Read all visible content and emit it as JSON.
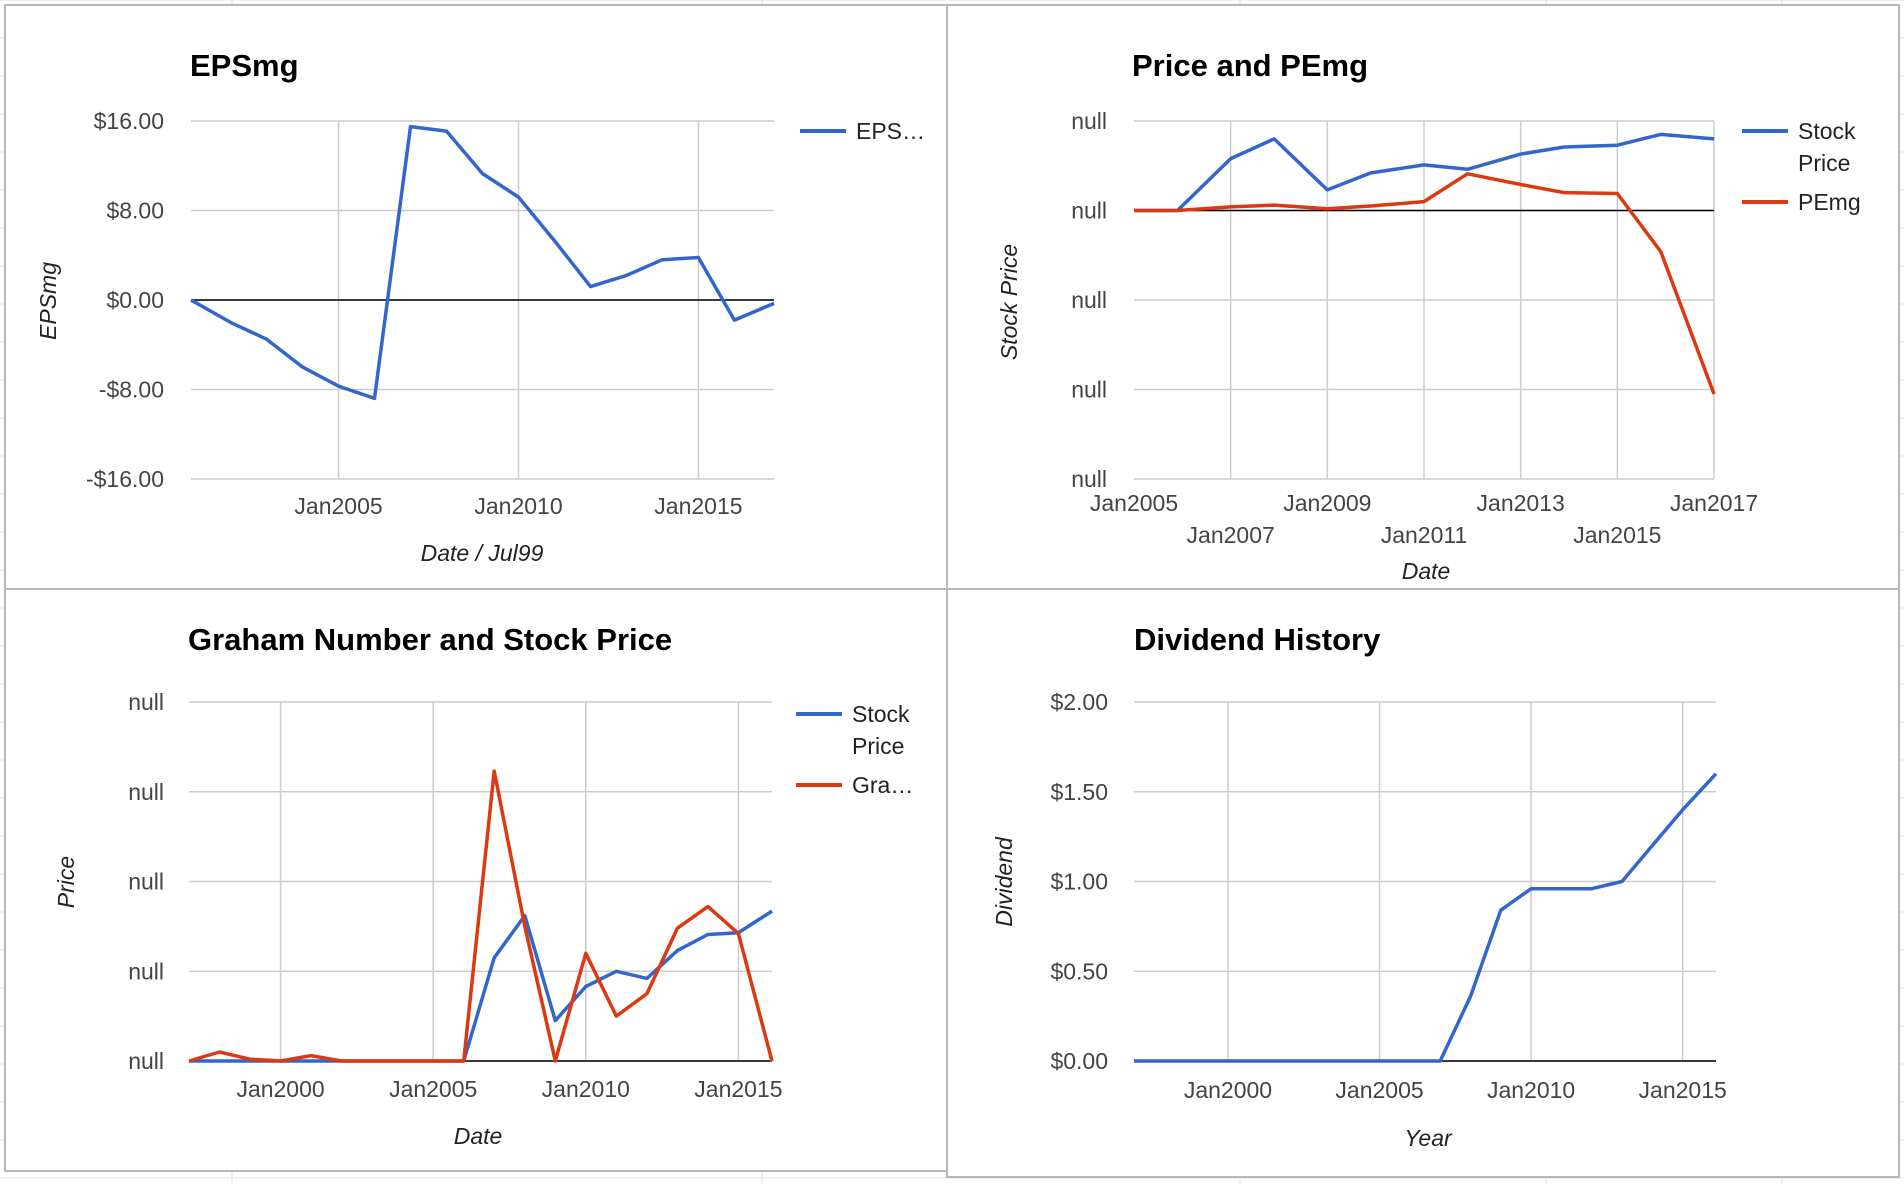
{
  "colors": {
    "blue": "#3366cc",
    "red": "#dc3912"
  },
  "chart_data": [
    {
      "type": "line",
      "title": "EPSmg",
      "xlabel": "Date / Jul99",
      "ylabel": "EPSmg",
      "x_ticks": [
        "Jan2005",
        "Jan2010",
        "Jan2015"
      ],
      "y_ticks": [
        "$16.00",
        "$8.00",
        "$0.00",
        "-$8.00",
        "-$16.00"
      ],
      "ylim": [
        -16,
        16
      ],
      "xlim": [
        2000.9,
        2017.1
      ],
      "grid": true,
      "legend_position": "right",
      "series": [
        {
          "name": "EPS…",
          "color": "#3366cc",
          "x": [
            2000.9,
            2002,
            2003,
            2004,
            2005,
            2006,
            2007,
            2008,
            2009,
            2010,
            2011,
            2012,
            2013,
            2014,
            2015,
            2016,
            2017.1
          ],
          "y": [
            0,
            -2,
            -3.5,
            -6,
            -7.7,
            -8.8,
            15.5,
            15.1,
            11.3,
            9.2,
            5.3,
            1.2,
            2.2,
            3.6,
            3.8,
            -1.8,
            -0.3
          ]
        }
      ]
    },
    {
      "type": "line",
      "title": "Price and PEmg",
      "xlabel": "Date",
      "ylabel": "Stock Price",
      "x_ticks_row1": [
        "Jan2005",
        "Jan2009",
        "Jan2013",
        "Jan2017"
      ],
      "x_ticks_row2": [
        "Jan2007",
        "Jan2011",
        "Jan2015"
      ],
      "y_ticks": [
        "null",
        "null",
        "null",
        "null",
        "null"
      ],
      "xlim": [
        2005,
        2017
      ],
      "ylim": [
        -3,
        1
      ],
      "grid": true,
      "legend_position": "right",
      "series": [
        {
          "name": "Stock Price",
          "color": "#3366cc",
          "x": [
            2005,
            2005.9,
            2007,
            2007.9,
            2009,
            2009.9,
            2011,
            2011.9,
            2013,
            2013.9,
            2015,
            2015.9,
            2017
          ],
          "y": [
            0,
            0,
            0.58,
            0.8,
            0.23,
            0.42,
            0.51,
            0.46,
            0.63,
            0.71,
            0.73,
            0.85,
            0.8
          ]
        },
        {
          "name": "PEmg",
          "color": "#dc3912",
          "x": [
            2005,
            2005.9,
            2007,
            2007.9,
            2009,
            2009.9,
            2011,
            2011.9,
            2013,
            2013.9,
            2015,
            2015.9,
            2017
          ],
          "y": [
            0,
            0,
            0.04,
            0.06,
            0.02,
            0.05,
            0.1,
            0.41,
            0.29,
            0.2,
            0.19,
            -0.46,
            -2.05
          ]
        }
      ]
    },
    {
      "type": "line",
      "title": "Graham Number and Stock Price",
      "xlabel": "Date",
      "ylabel": "Price",
      "x_ticks": [
        "Jan2000",
        "Jan2005",
        "Jan2010",
        "Jan2015"
      ],
      "y_ticks": [
        "null",
        "null",
        "null",
        "null",
        "null"
      ],
      "xlim": [
        1997,
        2016.1
      ],
      "ylim": [
        0,
        4
      ],
      "grid": true,
      "legend_position": "right",
      "series": [
        {
          "name": "Stock Price",
          "color": "#3366cc",
          "x": [
            1997,
            2001,
            2006,
            2007,
            2008,
            2009,
            2010,
            2011,
            2012,
            2013,
            2014,
            2015,
            2016.1
          ],
          "y": [
            0,
            0,
            0,
            1.15,
            1.62,
            0.45,
            0.83,
            1.0,
            0.92,
            1.23,
            1.41,
            1.43,
            1.67
          ]
        },
        {
          "name": "Gra…",
          "color": "#dc3912",
          "x": [
            1997,
            1998,
            1999,
            2000,
            2001,
            2002,
            2006,
            2007,
            2008,
            2009,
            2010,
            2011,
            2012,
            2013,
            2014,
            2015,
            2016.1
          ],
          "y": [
            0,
            0.1,
            0.02,
            0,
            0.06,
            0,
            0,
            3.23,
            1.5,
            0,
            1.2,
            0.5,
            0.75,
            1.48,
            1.72,
            1.42,
            0
          ]
        }
      ]
    },
    {
      "type": "line",
      "title": "Dividend History",
      "xlabel": "Year",
      "ylabel": "Dividend",
      "x_ticks": [
        "Jan2000",
        "Jan2005",
        "Jan2010",
        "Jan2015"
      ],
      "y_ticks": [
        "$2.00",
        "$1.50",
        "$1.00",
        "$0.50",
        "$0.00"
      ],
      "xlim": [
        1996.9,
        2016.1
      ],
      "ylim": [
        0,
        2
      ],
      "grid": true,
      "legend_position": "none",
      "series": [
        {
          "color": "#3366cc",
          "x": [
            1996.9,
            2007,
            2008,
            2009,
            2010,
            2011,
            2012,
            2013,
            2014,
            2015,
            2016.1
          ],
          "y": [
            0,
            0,
            0.36,
            0.84,
            0.96,
            0.96,
            0.96,
            1.0,
            1.2,
            1.4,
            1.6
          ]
        }
      ]
    }
  ]
}
